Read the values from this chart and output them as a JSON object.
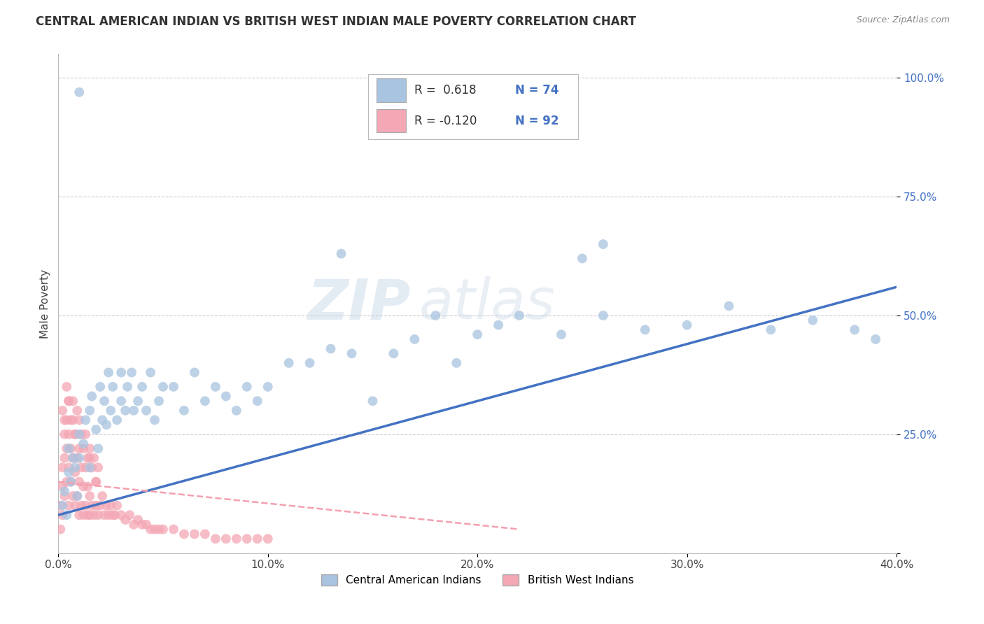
{
  "title": "CENTRAL AMERICAN INDIAN VS BRITISH WEST INDIAN MALE POVERTY CORRELATION CHART",
  "source": "Source: ZipAtlas.com",
  "ylabel": "Male Poverty",
  "xlim": [
    0.0,
    0.4
  ],
  "ylim": [
    0.0,
    1.05
  ],
  "ytick_values": [
    0.0,
    0.25,
    0.5,
    0.75,
    1.0
  ],
  "ytick_labels": [
    "",
    "25.0%",
    "50.0%",
    "75.0%",
    "100.0%"
  ],
  "xtick_values": [
    0.0,
    0.1,
    0.2,
    0.3,
    0.4
  ],
  "xtick_labels": [
    "0.0%",
    "10.0%",
    "20.0%",
    "30.0%",
    "40.0%"
  ],
  "blue_color": "#a8c4e0",
  "pink_color": "#f4a7b5",
  "blue_line_color": "#4472c4",
  "pink_line_color": "#f4a0b0",
  "legend_blue_label": "Central American Indians",
  "legend_pink_label": "British West Indians",
  "R_blue": 0.618,
  "R_pink": -0.12,
  "N_blue": 74,
  "N_pink": 92,
  "watermark_zip": "ZIP",
  "watermark_atlas": "atlas",
  "background_color": "#ffffff",
  "grid_color": "#cccccc",
  "blue_scatter_x": [
    0.002,
    0.003,
    0.004,
    0.005,
    0.005,
    0.006,
    0.007,
    0.008,
    0.009,
    0.01,
    0.01,
    0.012,
    0.013,
    0.015,
    0.015,
    0.016,
    0.018,
    0.019,
    0.02,
    0.021,
    0.022,
    0.023,
    0.024,
    0.025,
    0.026,
    0.028,
    0.03,
    0.03,
    0.032,
    0.033,
    0.035,
    0.036,
    0.038,
    0.04,
    0.042,
    0.044,
    0.046,
    0.048,
    0.05,
    0.055,
    0.06,
    0.065,
    0.07,
    0.075,
    0.08,
    0.085,
    0.09,
    0.095,
    0.1,
    0.11,
    0.12,
    0.13,
    0.14,
    0.15,
    0.16,
    0.17,
    0.18,
    0.19,
    0.2,
    0.21,
    0.22,
    0.24,
    0.26,
    0.28,
    0.3,
    0.32,
    0.34,
    0.36,
    0.38,
    0.39,
    0.25,
    0.01,
    0.135,
    0.26
  ],
  "blue_scatter_y": [
    0.1,
    0.13,
    0.08,
    0.17,
    0.22,
    0.15,
    0.2,
    0.18,
    0.12,
    0.25,
    0.2,
    0.23,
    0.28,
    0.3,
    0.18,
    0.33,
    0.26,
    0.22,
    0.35,
    0.28,
    0.32,
    0.27,
    0.38,
    0.3,
    0.35,
    0.28,
    0.32,
    0.38,
    0.3,
    0.35,
    0.38,
    0.3,
    0.32,
    0.35,
    0.3,
    0.38,
    0.28,
    0.32,
    0.35,
    0.35,
    0.3,
    0.38,
    0.32,
    0.35,
    0.33,
    0.3,
    0.35,
    0.32,
    0.35,
    0.4,
    0.4,
    0.43,
    0.42,
    0.32,
    0.42,
    0.45,
    0.5,
    0.4,
    0.46,
    0.48,
    0.5,
    0.46,
    0.5,
    0.47,
    0.48,
    0.52,
    0.47,
    0.49,
    0.47,
    0.45,
    0.62,
    0.97,
    0.63,
    0.65
  ],
  "pink_scatter_x": [
    0.001,
    0.001,
    0.002,
    0.002,
    0.002,
    0.003,
    0.003,
    0.003,
    0.004,
    0.004,
    0.004,
    0.005,
    0.005,
    0.005,
    0.005,
    0.006,
    0.006,
    0.007,
    0.007,
    0.007,
    0.008,
    0.008,
    0.008,
    0.009,
    0.009,
    0.01,
    0.01,
    0.01,
    0.011,
    0.011,
    0.012,
    0.012,
    0.013,
    0.013,
    0.014,
    0.014,
    0.015,
    0.015,
    0.015,
    0.016,
    0.017,
    0.018,
    0.018,
    0.019,
    0.02,
    0.021,
    0.022,
    0.023,
    0.024,
    0.025,
    0.026,
    0.027,
    0.028,
    0.03,
    0.032,
    0.034,
    0.036,
    0.038,
    0.04,
    0.042,
    0.044,
    0.046,
    0.048,
    0.05,
    0.055,
    0.06,
    0.065,
    0.07,
    0.075,
    0.08,
    0.085,
    0.09,
    0.095,
    0.1,
    0.002,
    0.003,
    0.004,
    0.005,
    0.006,
    0.007,
    0.008,
    0.009,
    0.01,
    0.011,
    0.012,
    0.013,
    0.014,
    0.015,
    0.016,
    0.017,
    0.018,
    0.019
  ],
  "pink_scatter_y": [
    0.05,
    0.1,
    0.08,
    0.14,
    0.18,
    0.12,
    0.2,
    0.25,
    0.15,
    0.22,
    0.28,
    0.1,
    0.18,
    0.25,
    0.32,
    0.15,
    0.22,
    0.12,
    0.2,
    0.28,
    0.1,
    0.17,
    0.25,
    0.12,
    0.2,
    0.08,
    0.15,
    0.22,
    0.1,
    0.18,
    0.08,
    0.14,
    0.1,
    0.18,
    0.08,
    0.14,
    0.08,
    0.12,
    0.2,
    0.1,
    0.08,
    0.1,
    0.15,
    0.08,
    0.1,
    0.12,
    0.08,
    0.1,
    0.08,
    0.1,
    0.08,
    0.08,
    0.1,
    0.08,
    0.07,
    0.08,
    0.06,
    0.07,
    0.06,
    0.06,
    0.05,
    0.05,
    0.05,
    0.05,
    0.05,
    0.04,
    0.04,
    0.04,
    0.03,
    0.03,
    0.03,
    0.03,
    0.03,
    0.03,
    0.3,
    0.28,
    0.35,
    0.32,
    0.28,
    0.32,
    0.25,
    0.3,
    0.28,
    0.25,
    0.22,
    0.25,
    0.2,
    0.22,
    0.18,
    0.2,
    0.15,
    0.18
  ],
  "blue_line_x": [
    0.0,
    0.4
  ],
  "blue_line_y": [
    0.08,
    0.56
  ],
  "pink_line_x": [
    0.0,
    0.22
  ],
  "pink_line_y": [
    0.15,
    0.05
  ]
}
